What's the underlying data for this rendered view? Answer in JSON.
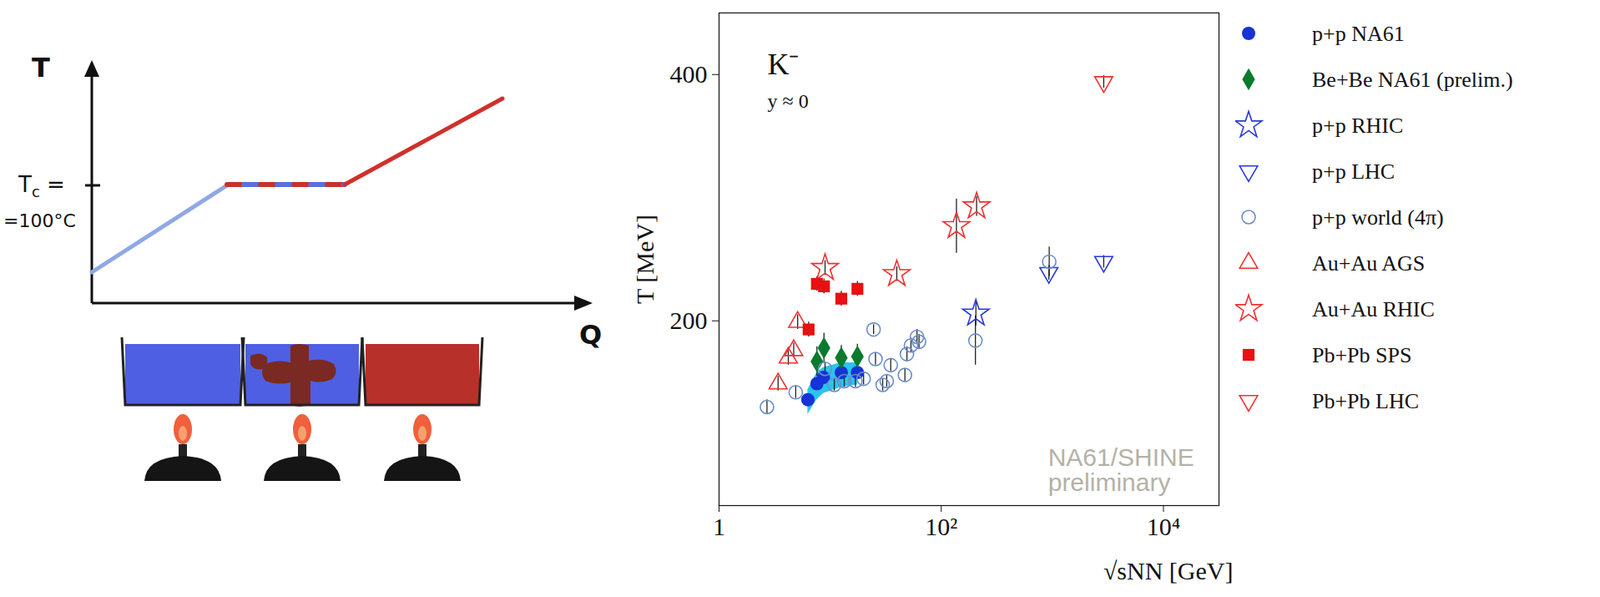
{
  "diagram": {
    "y_axis_label": "T",
    "x_axis_label": "Q",
    "tc_label": {
      "base": "T",
      "subscript": "c",
      "suffix": " =",
      "second_line": "=100°C"
    }
  },
  "chart_data": {
    "type": "scatter",
    "xlabel": "√sNN [GeV]",
    "ylabel": "T [MeV]",
    "particle_label": "K⁻",
    "rapidity_label": "y ≈ 0",
    "watermark": [
      "NA61/SHINE",
      "preliminary"
    ],
    "log": "x",
    "grid": false,
    "legend": "right",
    "xlim": [
      1,
      31600
    ],
    "ylim": [
      50,
      450
    ],
    "xticks": [
      1,
      {
        "value": 100,
        "label": "10²"
      },
      {
        "value": 10000,
        "label": "10⁴"
      }
    ],
    "yticks": [
      200,
      400
    ],
    "series": [
      {
        "name": "p+p NA61",
        "color": "#1533d6",
        "marker": "circle",
        "x": [
          6.3,
          7.6,
          8.7,
          12.6,
          17.6
        ],
        "values": [
          136,
          149,
          154,
          158,
          158
        ],
        "errors": [
          4,
          4,
          4,
          4,
          4
        ],
        "band_low": [
          124,
          136,
          141,
          146,
          148
        ],
        "band_high": [
          144,
          158,
          162,
          166,
          166
        ]
      },
      {
        "name": "Be+Be NA61 (prelim.)",
        "color": "#0b7a2e",
        "marker": "diamond",
        "x": [
          7.6,
          8.8,
          12.6,
          17.6
        ],
        "values": [
          167,
          178,
          170,
          171
        ],
        "errors": [
          12,
          12,
          10,
          10
        ]
      },
      {
        "name": "p+p RHIC",
        "color": "#2a3ad8",
        "marker": "open-star",
        "x": [
          205
        ],
        "values": [
          206
        ],
        "errors": [
          10
        ]
      },
      {
        "name": "p+p LHC",
        "color": "#2a3ad8",
        "marker": "open-triangle-down",
        "x": [
          930,
          2900
        ],
        "values": [
          239,
          248
        ],
        "errors": [
          6,
          5
        ]
      },
      {
        "name": "p+p world (4π)",
        "color": "#6c8ec8",
        "marker": "open-circle",
        "x": [
          2.7,
          4.9,
          9.0,
          10.9,
          13.4,
          16.9,
          20,
          24.6,
          25.6,
          29.7,
          32.3,
          35.1,
          47.1,
          49.1,
          53.4,
          60.5,
          63.1,
          203,
          937
        ],
        "values": [
          130,
          142,
          161,
          148,
          151,
          151,
          153,
          193,
          169,
          148,
          151,
          164,
          156,
          173,
          180,
          187,
          183,
          184,
          248
        ],
        "errors": [
          6,
          5,
          5,
          5,
          5,
          5,
          5,
          4,
          5,
          5,
          5,
          5,
          5,
          6,
          6,
          6,
          6,
          20,
          12
        ]
      },
      {
        "name": "Au+Au AGS",
        "color": "#f03030",
        "marker": "open-triangle",
        "x": [
          3.4,
          4.2,
          4.7,
          5.1
        ],
        "values": [
          149,
          170,
          176,
          199
        ],
        "errors": [
          6,
          6,
          6,
          6
        ]
      },
      {
        "name": "Au+Au RHIC",
        "color": "#f03030",
        "marker": "open-star",
        "x": [
          9.0,
          39.8,
          137,
          208
        ],
        "values": [
          243,
          238,
          277,
          293
        ],
        "errors": [
          6,
          6,
          22,
          8
        ]
      },
      {
        "name": "Pb+Pb SPS",
        "color": "#e81010",
        "marker": "square",
        "x": [
          6.4,
          7.6,
          8.8,
          12.6,
          17.6
        ],
        "values": [
          193,
          230,
          228,
          218,
          226
        ],
        "errors": [
          6,
          6,
          6,
          6,
          6
        ]
      },
      {
        "name": "Pb+Pb LHC",
        "color": "#f03030",
        "marker": "open-triangle-down",
        "x": [
          2900
        ],
        "values": [
          394
        ],
        "errors": [
          5
        ]
      }
    ]
  }
}
